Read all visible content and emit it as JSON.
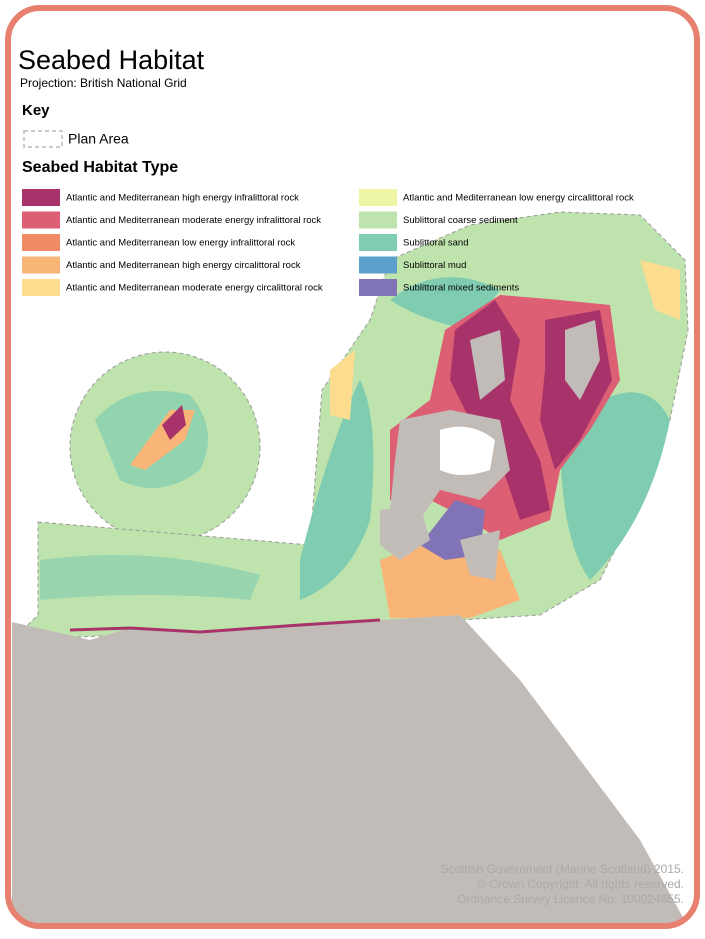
{
  "title": "Seabed Habitat",
  "subtitle": "Projection: British National Grid",
  "key": {
    "heading": "Key",
    "plan_area": "Plan Area"
  },
  "legend": {
    "heading": "Seabed Habitat Type",
    "items": [
      {
        "label": "Atlantic and Mediterranean high energy infralittoral rock",
        "color": "#a8336a"
      },
      {
        "label": "Atlantic and Mediterranean moderate energy infralittoral rock",
        "color": "#dd5f73"
      },
      {
        "label": "Atlantic and Mediterranean low energy infralittoral rock",
        "color": "#f18a66"
      },
      {
        "label": "Atlantic and Mediterranean high energy circalittoral rock",
        "color": "#f8b577"
      },
      {
        "label": "Atlantic and Mediterranean moderate energy circalittoral rock",
        "color": "#fcdc8f"
      },
      {
        "label": "Atlantic and Mediterranean low energy circalittoral rock",
        "color": "#eef5a5"
      },
      {
        "label": "Sublittoral coarse sediment",
        "color": "#bfe3ad"
      },
      {
        "label": "Sublittoral sand",
        "color": "#7fccb0"
      },
      {
        "label": "Sublittoral mud",
        "color": "#5ba1cb"
      },
      {
        "label": "Sublittoral mixed sediments",
        "color": "#8073b6"
      }
    ]
  },
  "credits": [
    "Scottish Government (Marine Scotland) 2015.",
    "© Crown Copyright, All rights reserved.",
    "Ordnance Survey Licence No. 100024655."
  ]
}
